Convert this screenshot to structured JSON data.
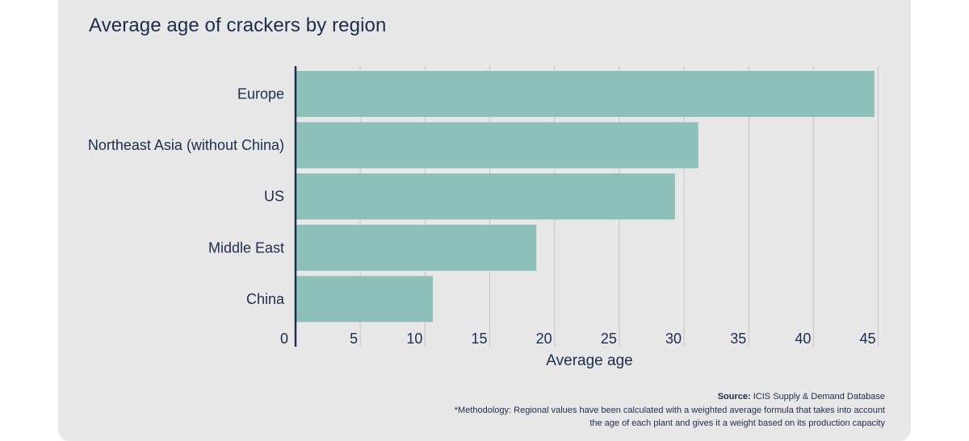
{
  "chart_data": {
    "type": "bar",
    "orientation": "horizontal",
    "title": "Average age of crackers by region",
    "categories": [
      "Europe",
      "Northeast Asia (without China)",
      "US",
      "Middle East",
      "China"
    ],
    "values": [
      44.7,
      31.1,
      29.3,
      18.6,
      10.6
    ],
    "xlabel": "Average age",
    "ylabel": "",
    "xlim": [
      0,
      45.4
    ],
    "xticks": [
      "0",
      "5",
      "10",
      "15",
      "20",
      "25",
      "30",
      "35",
      "40",
      "45"
    ],
    "grid": "vertical",
    "colors": {
      "bar": "#8bbfb8",
      "axis": "#1b2d4e",
      "grid": "#c4c4c4",
      "text": "#1b2d4e"
    }
  },
  "footnote": {
    "source_label": "Source:",
    "source_text": " ICIS Supply & Demand Database",
    "methodology_line1": "*Methodology: Regional values have been calculated with a weighted average formula that takes into account",
    "methodology_line2": "the age of each plant and gives it a weight based on its production capacity"
  }
}
